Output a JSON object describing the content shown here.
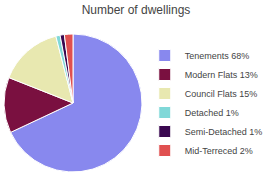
{
  "chart_data": {
    "type": "pie",
    "title": "Number of dwellings",
    "labels": [
      "Tenements 68%",
      "Modern Flats 13%",
      "Council Flats 15%",
      "Detached 1%",
      "Semi-Detached 1%",
      "Mid-Terreced 2%"
    ],
    "values": [
      68,
      13,
      15,
      1,
      1,
      2
    ],
    "colors": [
      "#8888ee",
      "#7a1040",
      "#e8e8b0",
      "#80d8d8",
      "#3a0850",
      "#e05050"
    ],
    "legend": "right"
  }
}
